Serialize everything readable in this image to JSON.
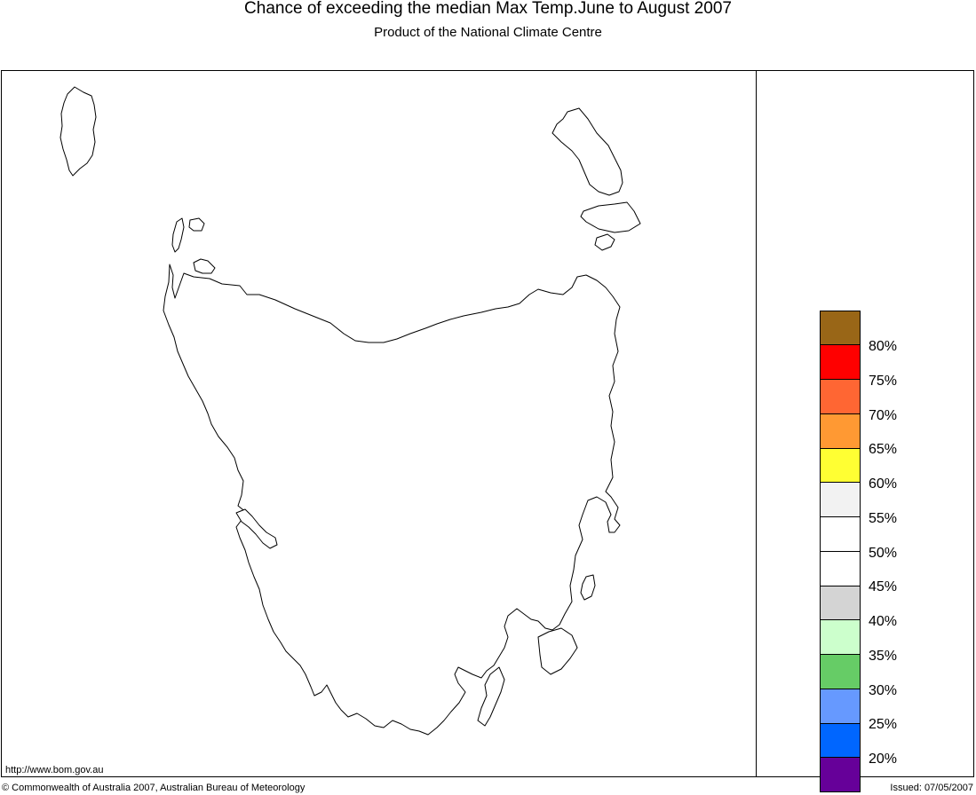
{
  "header": {
    "title": "Chance of exceeding the median Max Temp.June to August 2007",
    "subtitle": "Product of the National Climate Centre"
  },
  "map": {
    "region_fill": "#ffffff",
    "outline_color": "#000000"
  },
  "legend": {
    "swatches": [
      {
        "color": "#996617"
      },
      {
        "color": "#ff0000"
      },
      {
        "color": "#ff6633"
      },
      {
        "color": "#ff9933"
      },
      {
        "color": "#ffff33"
      },
      {
        "color": "#f2f2f2"
      },
      {
        "color": "#ffffff"
      },
      {
        "color": "#ffffff"
      },
      {
        "color": "#d4d4d4"
      },
      {
        "color": "#ccffcc"
      },
      {
        "color": "#66cc66"
      },
      {
        "color": "#6699ff"
      },
      {
        "color": "#0066ff"
      },
      {
        "color": "#660099"
      }
    ],
    "labels": [
      "80%",
      "75%",
      "70%",
      "65%",
      "60%",
      "55%",
      "50%",
      "45%",
      "40%",
      "35%",
      "30%",
      "25%",
      "20%"
    ]
  },
  "footer": {
    "url": "http://www.bom.gov.au",
    "copyright": "© Commonwealth of Australia 2007, Australian Bureau of Meteorology",
    "issued": "Issued: 07/05/2007"
  }
}
